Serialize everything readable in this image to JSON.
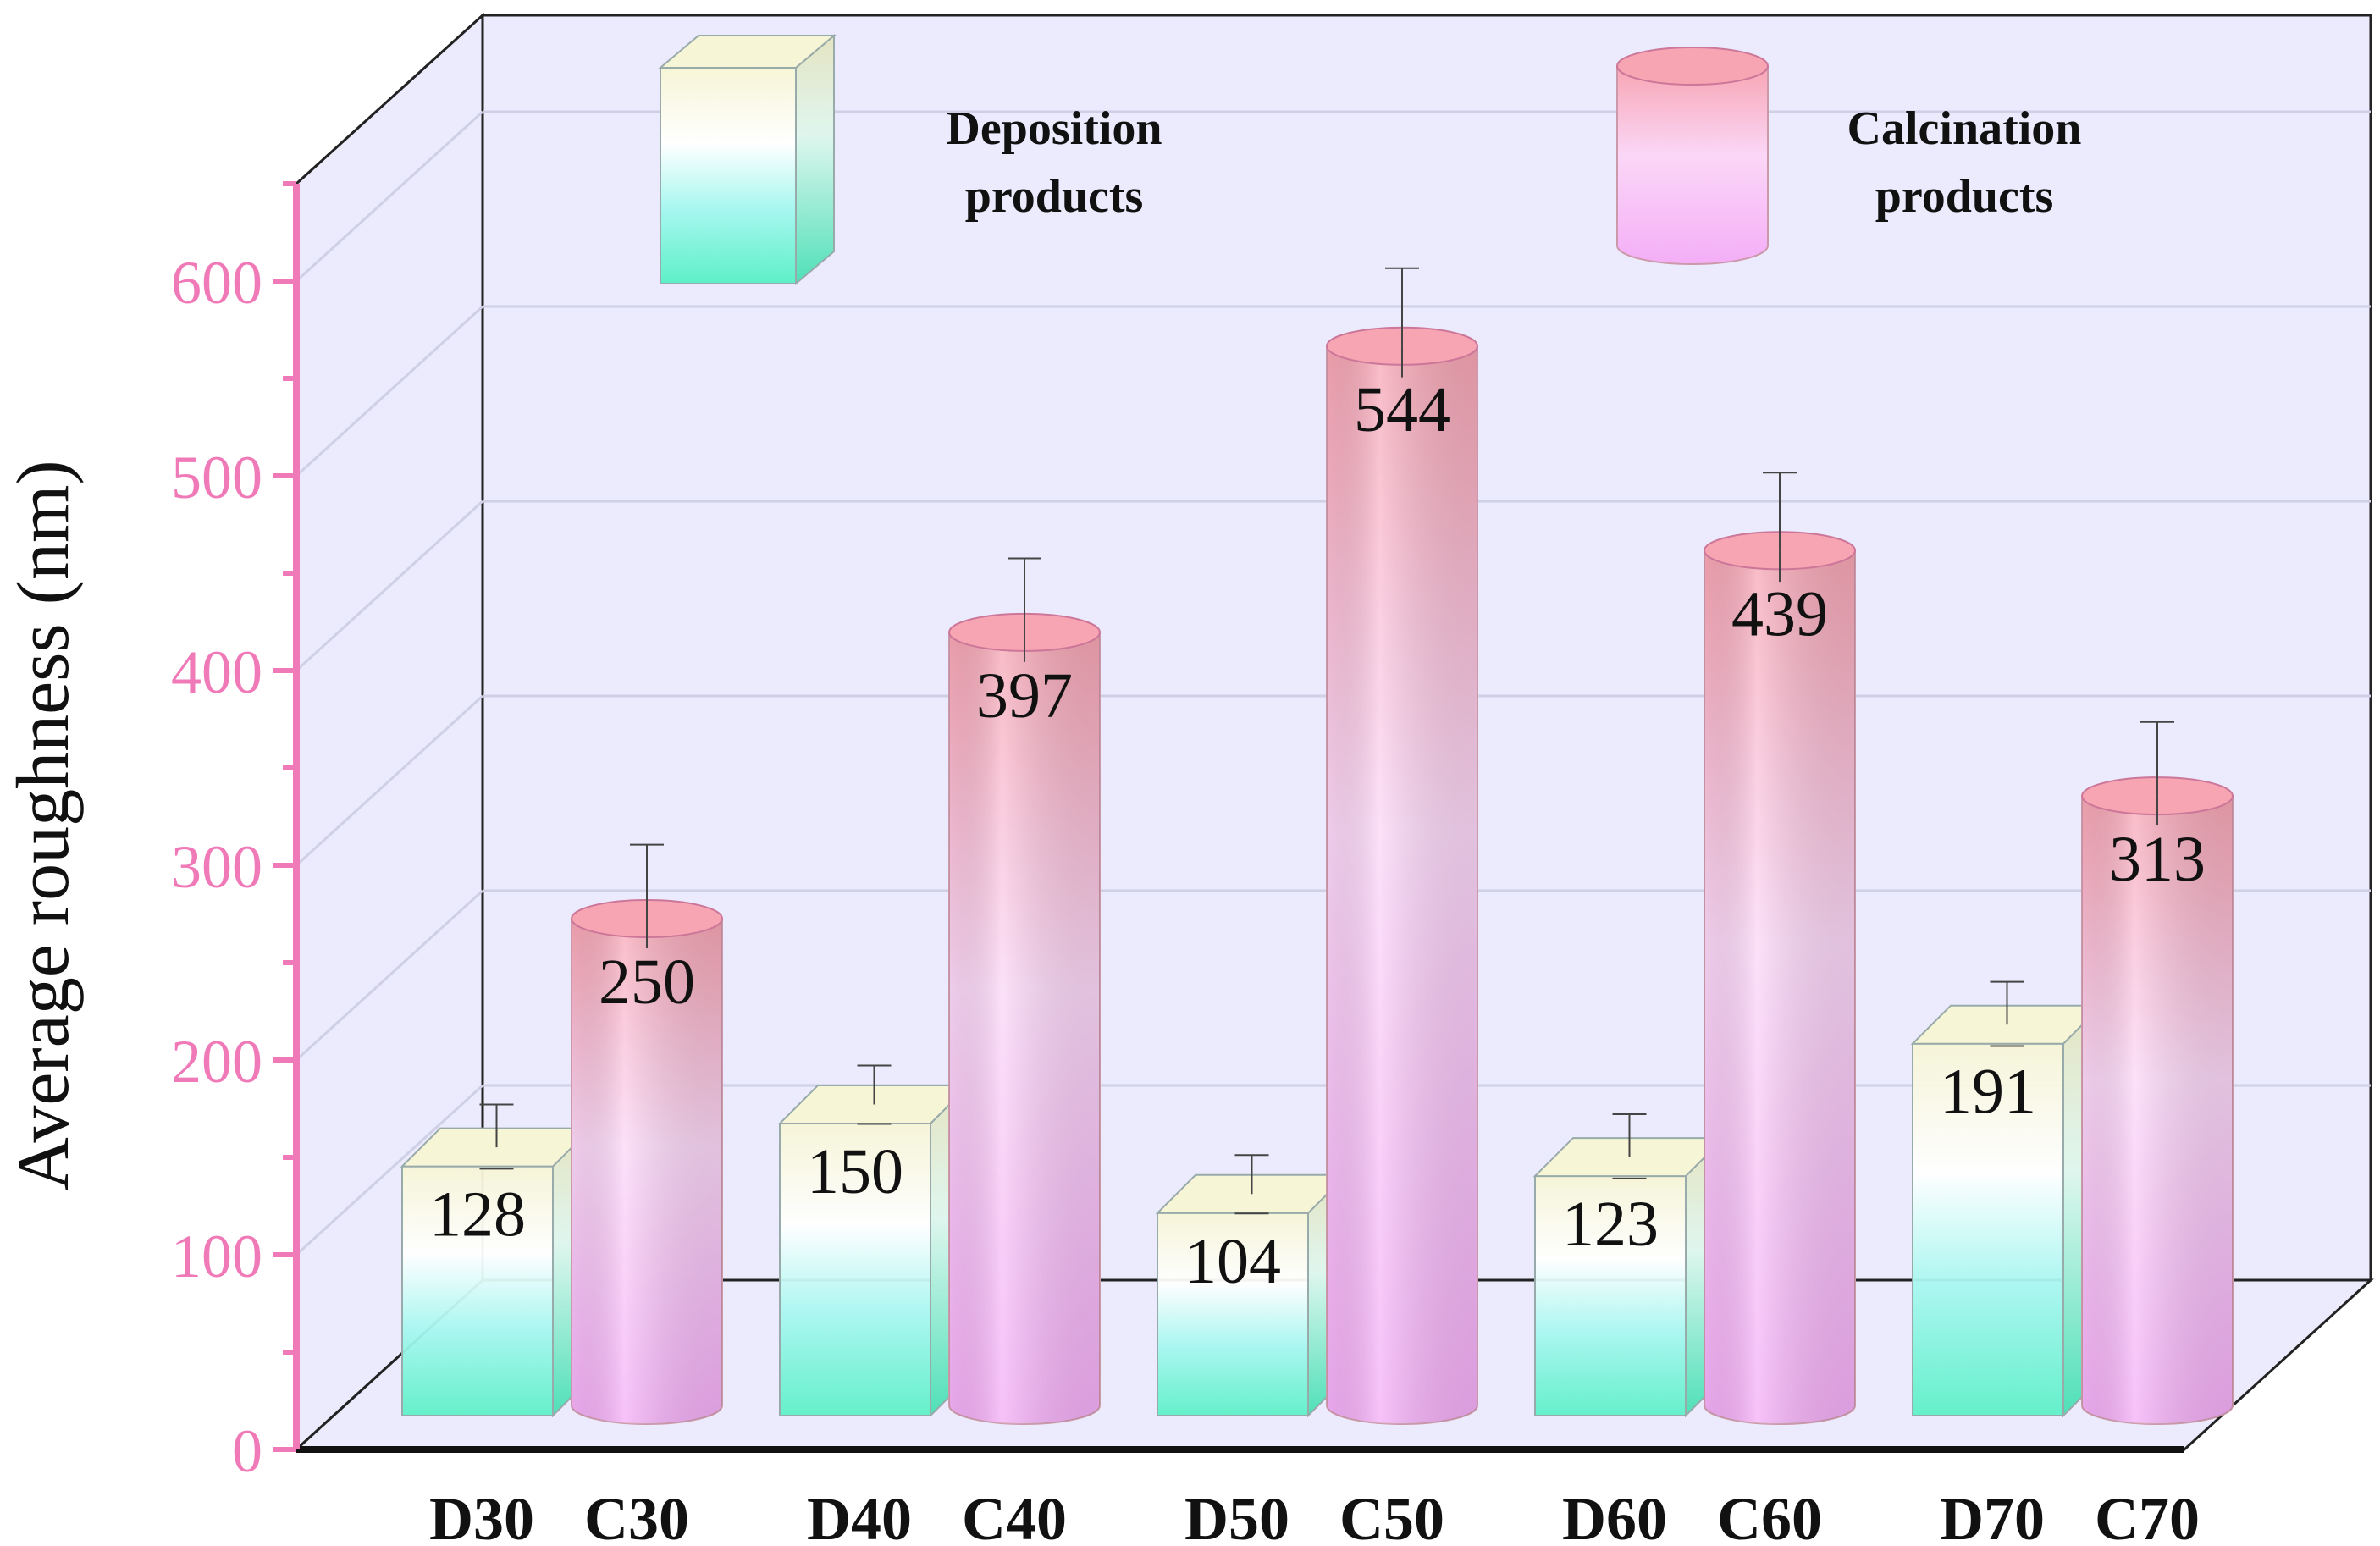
{
  "chart_data": {
    "type": "bar",
    "style": "3d",
    "title": "",
    "xlabel": "",
    "ylabel": "Average roughness (nm)",
    "ylim": [
      0,
      650
    ],
    "yticks": [
      0,
      100,
      200,
      300,
      400,
      500,
      600
    ],
    "grid": true,
    "groups": [
      "30",
      "40",
      "50",
      "60",
      "70"
    ],
    "series": [
      {
        "name": "Deposition products",
        "shape": "box",
        "categories": [
          "D30",
          "D40",
          "D50",
          "D60",
          "D70"
        ],
        "values": [
          128,
          150,
          104,
          123,
          191
        ],
        "error": [
          22,
          20,
          20,
          22,
          22
        ]
      },
      {
        "name": "Calcination products",
        "shape": "cylinder",
        "categories": [
          "C30",
          "C40",
          "C50",
          "C60",
          "C70"
        ],
        "values": [
          250,
          397,
          544,
          439,
          313
        ],
        "error": [
          38,
          38,
          40,
          40,
          38
        ]
      }
    ],
    "legend": {
      "placement": "top",
      "entries": [
        {
          "line1": "Deposition",
          "line2": "products"
        },
        {
          "line1": "Calcination",
          "line2": "products"
        }
      ]
    },
    "colors": {
      "axis": "#f07ab8",
      "back_wall": "#ebebfd",
      "grid": "#cfcfe6",
      "dep_top": "#f6f5d6",
      "dep_mid": "#ffffff",
      "dep_bottom": "#5ef0c8",
      "cal_top": "#f7a5b3",
      "cal_mid": "#fbd7f7",
      "cal_bottom": "#f4aef7"
    }
  }
}
